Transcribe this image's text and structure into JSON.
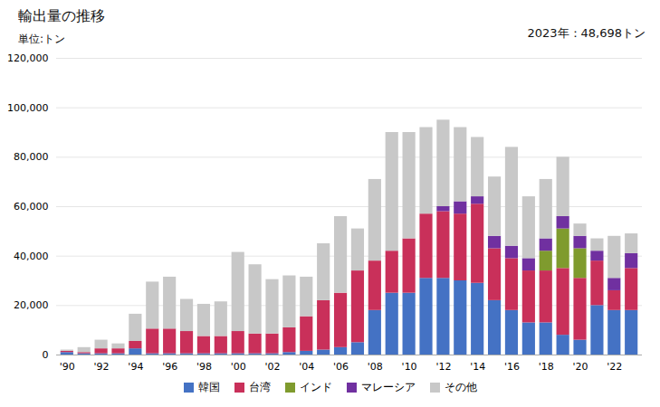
{
  "chart_data": {
    "type": "bar",
    "stacked": true,
    "title": "輸出量の推移",
    "subtitle": "単位:トン",
    "annotation": "2023年：48,698トン",
    "categories": [
      "'90",
      null,
      "'92",
      null,
      "'94",
      null,
      "'96",
      null,
      "'98",
      null,
      "'00",
      null,
      "'02",
      null,
      "'04",
      null,
      "'06",
      null,
      "'08",
      null,
      "'10",
      null,
      "'12",
      null,
      "'14",
      null,
      "'16",
      null,
      "'18",
      null,
      "'20",
      null,
      "'22",
      null
    ],
    "series": [
      {
        "name": "韓国",
        "color": "#4472c4",
        "values": [
          1000,
          500,
          500,
          500,
          2500,
          500,
          500,
          500,
          500,
          500,
          500,
          500,
          500,
          1000,
          1500,
          2000,
          3000,
          5000,
          18000,
          25000,
          25000,
          31000,
          31000,
          30000,
          29000,
          22000,
          18000,
          13000,
          13000,
          8000,
          6000,
          20000,
          18000,
          18000
        ]
      },
      {
        "name": "台湾",
        "color": "#c9305a",
        "values": [
          500,
          500,
          2000,
          2000,
          3000,
          10000,
          10000,
          9000,
          7000,
          7000,
          9000,
          8000,
          8000,
          10000,
          14000,
          20000,
          22000,
          29000,
          20000,
          17000,
          22000,
          26000,
          27000,
          27000,
          32000,
          21000,
          21000,
          21000,
          21000,
          27000,
          25000,
          18000,
          8000,
          17000
        ]
      },
      {
        "name": "インド",
        "color": "#7f9b2e",
        "values": [
          0,
          0,
          0,
          0,
          0,
          0,
          0,
          0,
          0,
          0,
          0,
          0,
          0,
          0,
          0,
          0,
          0,
          0,
          0,
          0,
          0,
          0,
          0,
          0,
          0,
          0,
          0,
          0,
          8000,
          16000,
          12000,
          0,
          0,
          0
        ]
      },
      {
        "name": "マレーシア",
        "color": "#7030a0",
        "values": [
          0,
          0,
          0,
          0,
          0,
          0,
          0,
          0,
          0,
          0,
          0,
          0,
          0,
          0,
          0,
          0,
          0,
          0,
          0,
          0,
          0,
          0,
          2000,
          5000,
          3000,
          5000,
          5000,
          5000,
          5000,
          5000,
          5000,
          4000,
          5000,
          6000
        ]
      },
      {
        "name": "その他",
        "color": "#c8c8c8",
        "values": [
          500,
          2000,
          3500,
          2000,
          11000,
          19000,
          21000,
          13000,
          13000,
          14000,
          32000,
          28000,
          22000,
          21000,
          16000,
          23000,
          31000,
          17000,
          33000,
          48000,
          43000,
          35000,
          35000,
          30000,
          24000,
          24000,
          40000,
          25000,
          24000,
          24000,
          5000,
          5000,
          17000,
          8000
        ]
      }
    ],
    "ylim": [
      0,
      120000
    ],
    "yticks": [
      0,
      {
        "value": 20000,
        "label": "20,000"
      },
      {
        "value": 40000,
        "label": "40,000"
      },
      {
        "value": 60000,
        "label": "60,000"
      },
      {
        "value": 80000,
        "label": "80,000"
      },
      {
        "value": 100000,
        "label": "100,000"
      },
      {
        "value": 120000,
        "label": "120,000"
      }
    ],
    "grid": true,
    "legend": "bottom"
  }
}
